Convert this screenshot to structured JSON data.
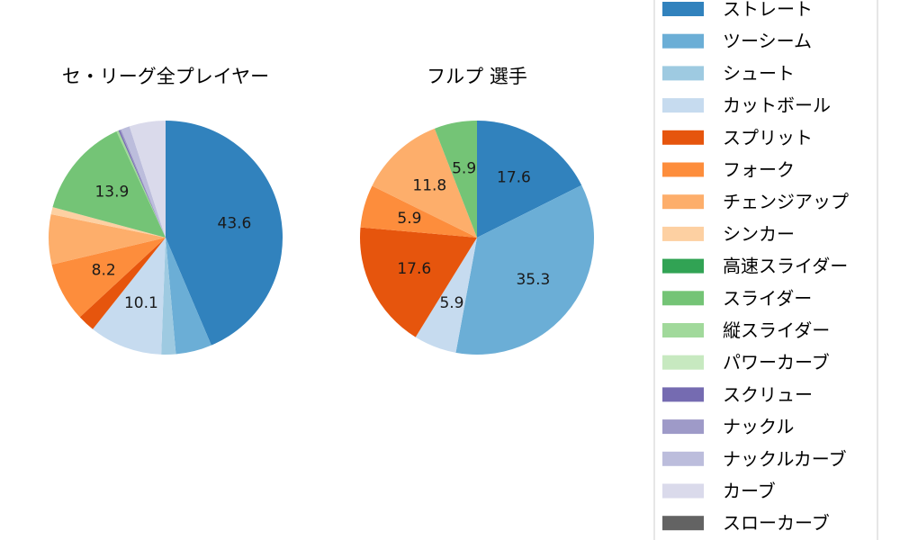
{
  "colors": {
    "ストレート": "#3182bd",
    "ツーシーム": "#6baed6",
    "シュート": "#9ecae1",
    "カットボール": "#c6dbef",
    "スプリット": "#e6550d",
    "フォーク": "#fd8d3c",
    "チェンジアップ": "#fdae6b",
    "シンカー": "#fdd0a2",
    "高速スライダー": "#31a354",
    "スライダー": "#74c476",
    "縦スライダー": "#a1d99b",
    "パワーカーブ": "#c7e9c0",
    "スクリュー": "#756bb1",
    "ナックル": "#9e9ac8",
    "ナックルカーブ": "#bcbddc",
    "カーブ": "#dadaeb",
    "スローカーブ": "#636363"
  },
  "legend": {
    "placement": "right",
    "entries": [
      "ストレート",
      "ツーシーム",
      "シュート",
      "カットボール",
      "スプリット",
      "フォーク",
      "チェンジアップ",
      "シンカー",
      "高速スライダー",
      "スライダー",
      "縦スライダー",
      "パワーカーブ",
      "スクリュー",
      "ナックル",
      "ナックルカーブ",
      "カーブ",
      "スローカーブ"
    ]
  },
  "chart_data": [
    {
      "type": "pie",
      "title": "セ・リーグ全プレイヤー",
      "start_angle_deg": 90,
      "direction": "clockwise",
      "slices": [
        {
          "name": "ストレート",
          "value": 43.6,
          "label": "43.6"
        },
        {
          "name": "ツーシーム",
          "value": 5.0,
          "label": ""
        },
        {
          "name": "シュート",
          "value": 2.0,
          "label": ""
        },
        {
          "name": "カットボール",
          "value": 10.1,
          "label": "10.1"
        },
        {
          "name": "スプリット",
          "value": 2.4,
          "label": ""
        },
        {
          "name": "フォーク",
          "value": 8.2,
          "label": "8.2"
        },
        {
          "name": "チェンジアップ",
          "value": 6.9,
          "label": ""
        },
        {
          "name": "シンカー",
          "value": 1.0,
          "label": ""
        },
        {
          "name": "スライダー",
          "value": 13.9,
          "label": "13.9"
        },
        {
          "name": "縦スライダー",
          "value": 0.3,
          "label": ""
        },
        {
          "name": "スクリュー",
          "value": 0.2,
          "label": ""
        },
        {
          "name": "ナックル",
          "value": 0.2,
          "label": ""
        },
        {
          "name": "ナックルカーブ",
          "value": 1.2,
          "label": ""
        },
        {
          "name": "カーブ",
          "value": 5.0,
          "label": ""
        }
      ]
    },
    {
      "type": "pie",
      "title": "フルプ  選手",
      "start_angle_deg": 90,
      "direction": "clockwise",
      "slices": [
        {
          "name": "ストレート",
          "value": 17.6,
          "label": "17.6"
        },
        {
          "name": "ツーシーム",
          "value": 35.3,
          "label": "35.3"
        },
        {
          "name": "カットボール",
          "value": 5.9,
          "label": "5.9"
        },
        {
          "name": "スプリット",
          "value": 17.6,
          "label": "17.6"
        },
        {
          "name": "フォーク",
          "value": 5.9,
          "label": "5.9"
        },
        {
          "name": "チェンジアップ",
          "value": 11.8,
          "label": "11.8"
        },
        {
          "name": "スライダー",
          "value": 5.9,
          "label": "5.9"
        }
      ]
    }
  ]
}
